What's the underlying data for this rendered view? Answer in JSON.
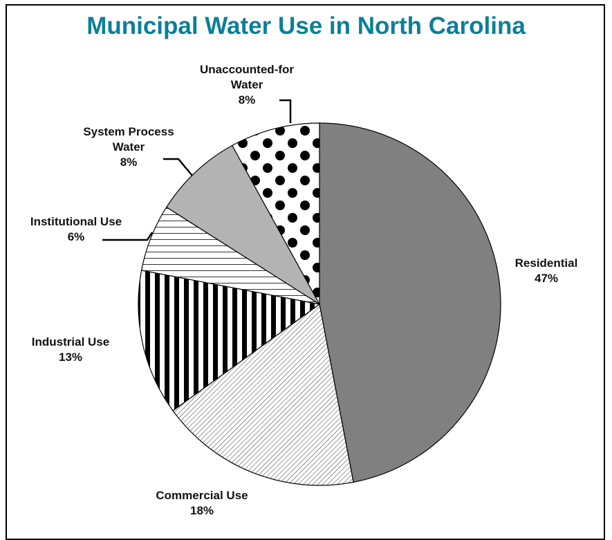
{
  "chart_data": {
    "type": "pie",
    "title": "Municipal Water Use in North Carolina",
    "start_angle_deg": 0,
    "direction": "clockwise",
    "slices": [
      {
        "label": [
          "Residential"
        ],
        "pct": "47%",
        "value": 47,
        "fill": "solid-gray",
        "color": "#808080"
      },
      {
        "label": [
          "Commercial Use"
        ],
        "pct": "18%",
        "value": 18,
        "fill": "fine-diagonal-hatch",
        "color": "#ffffff"
      },
      {
        "label": [
          "Industrial Use"
        ],
        "pct": "13%",
        "value": 13,
        "fill": "vertical-stripes",
        "color": "#000000"
      },
      {
        "label": [
          "Institutional Use"
        ],
        "pct": "6%",
        "value": 6,
        "fill": "horizontal-lines",
        "color": "#ffffff"
      },
      {
        "label": [
          "System Process",
          "Water"
        ],
        "pct": "8%",
        "value": 8,
        "fill": "solid-light-gray",
        "color": "#b3b3b3"
      },
      {
        "label": [
          "Unaccounted-for",
          "Water"
        ],
        "pct": "8%",
        "value": 8,
        "fill": "polka-dots",
        "color": "#000000"
      }
    ],
    "legend": "none",
    "title_color": "#0b7f99"
  }
}
